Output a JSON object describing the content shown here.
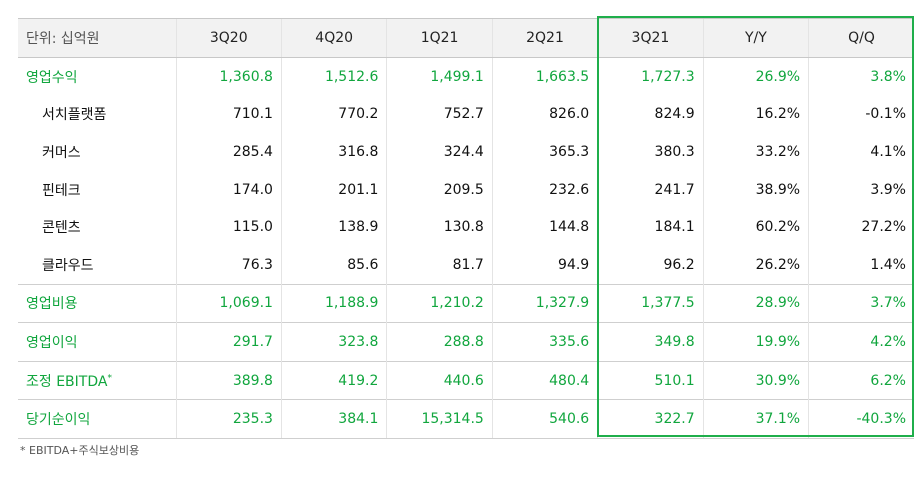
{
  "table": {
    "unit_label": "단위: 십억원",
    "headers": [
      "3Q20",
      "4Q20",
      "1Q21",
      "2Q21",
      "3Q21",
      "Y/Y",
      "Q/Q"
    ],
    "rows": [
      {
        "label": "영업수익",
        "values": [
          "1,360.8",
          "1,512.6",
          "1,499.1",
          "1,663.5",
          "1,727.3",
          "26.9%",
          "3.8%"
        ]
      },
      {
        "label": "서치플랫폼",
        "values": [
          "710.1",
          "770.2",
          "752.7",
          "826.0",
          "824.9",
          "16.2%",
          "-0.1%"
        ]
      },
      {
        "label": "커머스",
        "values": [
          "285.4",
          "316.8",
          "324.4",
          "365.3",
          "380.3",
          "33.2%",
          "4.1%"
        ]
      },
      {
        "label": "핀테크",
        "values": [
          "174.0",
          "201.1",
          "209.5",
          "232.6",
          "241.7",
          "38.9%",
          "3.9%"
        ]
      },
      {
        "label": "콘텐츠",
        "values": [
          "115.0",
          "138.9",
          "130.8",
          "144.8",
          "184.1",
          "60.2%",
          "27.2%"
        ]
      },
      {
        "label": "클라우드",
        "values": [
          "76.3",
          "85.6",
          "81.7",
          "94.9",
          "96.2",
          "26.2%",
          "1.4%"
        ]
      },
      {
        "label": "영업비용",
        "values": [
          "1,069.1",
          "1,188.9",
          "1,210.2",
          "1,327.9",
          "1,377.5",
          "28.9%",
          "3.7%"
        ]
      },
      {
        "label": "영업이익",
        "values": [
          "291.7",
          "323.8",
          "288.8",
          "335.6",
          "349.8",
          "19.9%",
          "4.2%"
        ]
      },
      {
        "label": "조정 EBITDA",
        "sup": "*",
        "values": [
          "389.8",
          "419.2",
          "440.6",
          "480.4",
          "510.1",
          "30.9%",
          "6.2%"
        ]
      },
      {
        "label": "당기순이익",
        "values": [
          "235.3",
          "384.1",
          "15,314.5",
          "540.6",
          "322.7",
          "37.1%",
          "-40.3%"
        ]
      }
    ]
  },
  "footnote": "* EBITDA+주식보상비용",
  "colors": {
    "accent_green": "#11a63e",
    "highlight_border": "#1fae4b",
    "header_bg": "#f2f2f2"
  }
}
